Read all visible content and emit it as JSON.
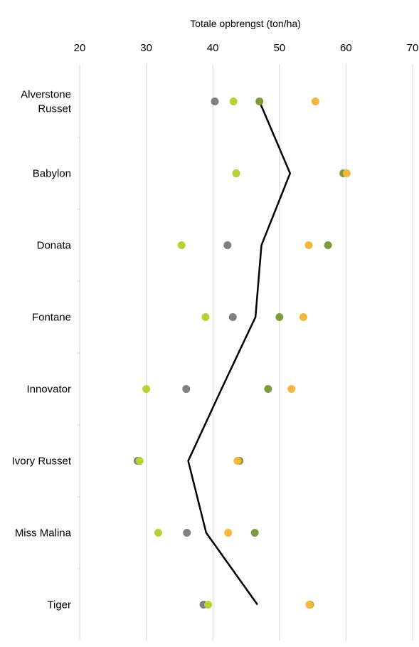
{
  "chart_data": {
    "type": "scatter",
    "title": "",
    "xlabel": "Totale opbrengst (ton/ha)",
    "ylabel": "",
    "xlim": [
      20,
      70
    ],
    "xticks": [
      "20",
      "30",
      "40",
      "50",
      "60",
      "70"
    ],
    "grid": true,
    "orientation": "horizontal",
    "categories": [
      "Alverstone Russet",
      "Babylon",
      "Donata",
      "Fontane",
      "Innovator",
      "Ivory Russet",
      "Miss Malina",
      "Tiger"
    ],
    "category_lines": [
      [
        "Alverstone",
        "Russet"
      ],
      [
        "Babylon"
      ],
      [
        "Donata"
      ],
      [
        "Fontane"
      ],
      [
        "Innovator"
      ],
      [
        "Ivory Russet"
      ],
      [
        "Miss Malina"
      ],
      [
        "Tiger"
      ]
    ],
    "series": [
      {
        "color": "#808080",
        "type": "scatter",
        "values": [
          40.3,
          43.5,
          42.2,
          43.0,
          36.0,
          28.7,
          36.1,
          38.6
        ]
      },
      {
        "color": "#b4d334",
        "type": "scatter",
        "values": [
          43.1,
          43.5,
          35.3,
          38.9,
          30.0,
          29.0,
          31.8,
          39.3
        ]
      },
      {
        "color": "#7f9a3c",
        "type": "scatter",
        "values": [
          47.0,
          59.6,
          57.3,
          50.0,
          48.3,
          44.0,
          46.3,
          54.6
        ]
      },
      {
        "color": "#f6b53c",
        "type": "scatter",
        "values": [
          55.4,
          60.1,
          54.4,
          53.6,
          51.8,
          43.7,
          42.3,
          54.5
        ]
      },
      {
        "color": "#000000",
        "type": "line",
        "values": [
          47.0,
          51.6,
          47.3,
          46.4,
          41.3,
          36.3,
          39.0,
          46.7
        ]
      }
    ]
  }
}
